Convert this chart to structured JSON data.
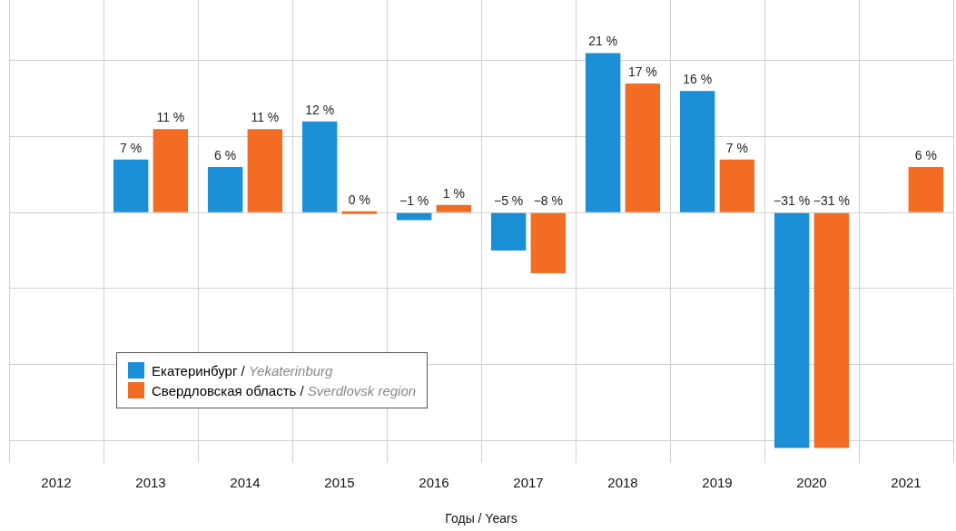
{
  "chart_data": {
    "type": "bar",
    "xlabel": "Годы / Years",
    "categories": [
      "2012",
      "2013",
      "2014",
      "2015",
      "2016",
      "2017",
      "2018",
      "2019",
      "2020",
      "2021"
    ],
    "series": [
      {
        "name": "Екатеринбург / Yekaterinburg",
        "color": "#1b8fd6",
        "values": [
          null,
          7,
          6,
          12,
          -1,
          -5,
          21,
          16,
          -31,
          null
        ],
        "value_labels": [
          null,
          "7 %",
          "6 %",
          "12 %",
          "−1 %",
          "−5 %",
          "21 %",
          "16 %",
          "−31 %",
          null
        ]
      },
      {
        "name": "Свердловская область / Sverdlovsk region",
        "color": "#f26c23",
        "values": [
          null,
          11,
          11,
          0,
          1,
          -8,
          17,
          7,
          -31,
          6
        ],
        "value_labels": [
          null,
          "11 %",
          "11 %",
          "0 %",
          "1 %",
          "−8 %",
          "17 %",
          "7 %",
          "−31 %",
          "6 %"
        ]
      }
    ],
    "ylim": [
      -33,
      28
    ],
    "yticks": [
      {
        "value": -30,
        "label": null
      },
      {
        "value": -20,
        "label": null
      },
      {
        "value": -10,
        "label": null
      },
      {
        "value": 0,
        "label": null
      },
      {
        "value": 10,
        "label": null
      },
      {
        "value": 20,
        "label": null
      }
    ],
    "grid": true,
    "legend": "bottom left",
    "tick_labels": "x"
  }
}
